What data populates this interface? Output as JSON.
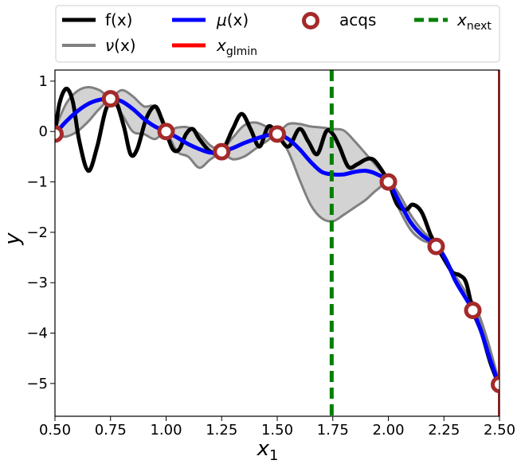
{
  "chart_data": {
    "type": "line",
    "xlabel_main": "x",
    "xlabel_sub": "1",
    "ylabel": "y",
    "xlim": [
      0.5,
      2.5
    ],
    "ylim": [
      -5.65,
      1.22
    ],
    "grid": false,
    "legend_placement": "top",
    "xticks": [
      0.5,
      0.75,
      1.0,
      1.25,
      1.5,
      1.75,
      2.0,
      2.25,
      2.5
    ],
    "xtick_labels": [
      "0.50",
      "0.75",
      "1.00",
      "1.25",
      "1.50",
      "1.75",
      "2.00",
      "2.25",
      "2.50"
    ],
    "yticks": [
      1,
      0,
      -1,
      -2,
      -3,
      -4,
      -5
    ],
    "ytick_labels": [
      "1",
      "0",
      "−1",
      "−2",
      "−3",
      "−4",
      "−5"
    ],
    "legend": {
      "f": "f(x)",
      "nu_sym": "ν",
      "nu_arg": "(x)",
      "mu_sym": "μ",
      "mu_arg": "(x)",
      "glmin_main": "x",
      "glmin_sub": "glmin",
      "acqs": "acqs",
      "next_main": "x",
      "next_sub": "next"
    },
    "colors": {
      "f": "#000000",
      "nu": "#808080",
      "band": "#d3d3d3",
      "mu": "#0000ff",
      "glmin": "#ff0000",
      "glmin_line": "#a52a2a",
      "acqs": "#a52a2a",
      "next": "#008000"
    },
    "f_points": [
      [
        0.5,
        -0.05
      ],
      [
        0.52,
        0.55
      ],
      [
        0.55,
        0.85
      ],
      [
        0.58,
        0.6
      ],
      [
        0.61,
        -0.2
      ],
      [
        0.65,
        -0.78
      ],
      [
        0.69,
        -0.3
      ],
      [
        0.73,
        0.45
      ],
      [
        0.77,
        0.62
      ],
      [
        0.81,
        0.1
      ],
      [
        0.84,
        -0.45
      ],
      [
        0.87,
        -0.35
      ],
      [
        0.91,
        0.25
      ],
      [
        0.95,
        0.5
      ],
      [
        0.98,
        0.25
      ],
      [
        1.0,
        0.0
      ],
      [
        1.03,
        -0.35
      ],
      [
        1.06,
        -0.35
      ],
      [
        1.09,
        -0.05
      ],
      [
        1.12,
        0.05
      ],
      [
        1.15,
        -0.15
      ],
      [
        1.2,
        -0.4
      ],
      [
        1.25,
        -0.4
      ],
      [
        1.3,
        0.05
      ],
      [
        1.34,
        0.35
      ],
      [
        1.38,
        0.05
      ],
      [
        1.42,
        -0.3
      ],
      [
        1.46,
        0.1
      ],
      [
        1.5,
        -0.05
      ],
      [
        1.55,
        -0.3
      ],
      [
        1.6,
        0.05
      ],
      [
        1.64,
        -0.2
      ],
      [
        1.68,
        -0.45
      ],
      [
        1.72,
        0.0
      ],
      [
        1.75,
        -0.05
      ],
      [
        1.78,
        -0.3
      ],
      [
        1.82,
        -0.7
      ],
      [
        1.86,
        -0.65
      ],
      [
        1.9,
        -0.55
      ],
      [
        1.93,
        -0.55
      ],
      [
        1.96,
        -0.7
      ],
      [
        2.0,
        -1.0
      ],
      [
        2.04,
        -1.45
      ],
      [
        2.08,
        -1.55
      ],
      [
        2.11,
        -1.45
      ],
      [
        2.15,
        -1.6
      ],
      [
        2.19,
        -2.05
      ],
      [
        2.22,
        -2.3
      ],
      [
        2.26,
        -2.6
      ],
      [
        2.29,
        -2.8
      ],
      [
        2.32,
        -2.85
      ],
      [
        2.35,
        -3.0
      ],
      [
        2.38,
        -3.55
      ],
      [
        2.42,
        -4.0
      ],
      [
        2.46,
        -4.6
      ],
      [
        2.5,
        -5.05
      ]
    ],
    "mu_points": [
      [
        0.5,
        -0.05
      ],
      [
        0.55,
        0.2
      ],
      [
        0.6,
        0.4
      ],
      [
        0.65,
        0.55
      ],
      [
        0.7,
        0.63
      ],
      [
        0.75,
        0.65
      ],
      [
        0.8,
        0.6
      ],
      [
        0.85,
        0.45
      ],
      [
        0.9,
        0.25
      ],
      [
        0.95,
        0.1
      ],
      [
        1.0,
        0.0
      ],
      [
        1.05,
        -0.12
      ],
      [
        1.1,
        -0.25
      ],
      [
        1.15,
        -0.35
      ],
      [
        1.2,
        -0.42
      ],
      [
        1.25,
        -0.4
      ],
      [
        1.3,
        -0.33
      ],
      [
        1.35,
        -0.23
      ],
      [
        1.4,
        -0.15
      ],
      [
        1.45,
        -0.08
      ],
      [
        1.5,
        -0.05
      ],
      [
        1.55,
        -0.15
      ],
      [
        1.6,
        -0.35
      ],
      [
        1.65,
        -0.6
      ],
      [
        1.7,
        -0.8
      ],
      [
        1.75,
        -0.85
      ],
      [
        1.8,
        -0.85
      ],
      [
        1.85,
        -0.8
      ],
      [
        1.9,
        -0.78
      ],
      [
        1.95,
        -0.85
      ],
      [
        2.0,
        -1.0
      ],
      [
        2.05,
        -1.4
      ],
      [
        2.1,
        -1.8
      ],
      [
        2.15,
        -2.05
      ],
      [
        2.2,
        -2.2
      ],
      [
        2.22,
        -2.27
      ],
      [
        2.26,
        -2.55
      ],
      [
        2.3,
        -2.95
      ],
      [
        2.34,
        -3.25
      ],
      [
        2.38,
        -3.55
      ],
      [
        2.42,
        -4.0
      ],
      [
        2.46,
        -4.55
      ],
      [
        2.5,
        -5.05
      ]
    ],
    "nu_upper": [
      [
        0.5,
        0.05
      ],
      [
        0.55,
        0.55
      ],
      [
        0.6,
        0.8
      ],
      [
        0.65,
        0.88
      ],
      [
        0.7,
        0.82
      ],
      [
        0.75,
        0.68
      ],
      [
        0.8,
        0.82
      ],
      [
        0.85,
        0.7
      ],
      [
        0.9,
        0.5
      ],
      [
        0.95,
        0.48
      ],
      [
        1.0,
        0.03
      ],
      [
        1.05,
        0.08
      ],
      [
        1.1,
        0.08
      ],
      [
        1.15,
        -0.05
      ],
      [
        1.2,
        -0.28
      ],
      [
        1.25,
        -0.36
      ],
      [
        1.3,
        -0.12
      ],
      [
        1.35,
        0.12
      ],
      [
        1.4,
        0.18
      ],
      [
        1.45,
        0.1
      ],
      [
        1.5,
        -0.02
      ],
      [
        1.55,
        0.15
      ],
      [
        1.6,
        0.15
      ],
      [
        1.65,
        0.1
      ],
      [
        1.7,
        0.08
      ],
      [
        1.75,
        0.05
      ],
      [
        1.8,
        0.02
      ],
      [
        1.85,
        -0.2
      ],
      [
        1.9,
        -0.45
      ],
      [
        1.95,
        -0.7
      ],
      [
        2.0,
        -0.95
      ],
      [
        2.05,
        -1.25
      ],
      [
        2.1,
        -1.65
      ],
      [
        2.15,
        -1.95
      ],
      [
        2.2,
        -2.18
      ],
      [
        2.25,
        -2.45
      ],
      [
        2.3,
        -2.85
      ],
      [
        2.35,
        -3.2
      ],
      [
        2.4,
        -3.55
      ],
      [
        2.45,
        -4.2
      ],
      [
        2.5,
        -5.0
      ]
    ],
    "nu_lower": [
      [
        0.5,
        -0.08
      ],
      [
        0.55,
        -0.1
      ],
      [
        0.6,
        0.0
      ],
      [
        0.65,
        0.2
      ],
      [
        0.7,
        0.45
      ],
      [
        0.75,
        0.62
      ],
      [
        0.8,
        0.35
      ],
      [
        0.85,
        0.0
      ],
      [
        0.9,
        -0.05
      ],
      [
        0.95,
        -0.15
      ],
      [
        1.0,
        -0.03
      ],
      [
        1.05,
        -0.4
      ],
      [
        1.1,
        -0.5
      ],
      [
        1.15,
        -0.72
      ],
      [
        1.2,
        -0.55
      ],
      [
        1.25,
        -0.44
      ],
      [
        1.3,
        -0.55
      ],
      [
        1.35,
        -0.5
      ],
      [
        1.4,
        -0.35
      ],
      [
        1.45,
        -0.2
      ],
      [
        1.5,
        -0.08
      ],
      [
        1.55,
        -0.4
      ],
      [
        1.6,
        -0.95
      ],
      [
        1.65,
        -1.45
      ],
      [
        1.7,
        -1.72
      ],
      [
        1.75,
        -1.78
      ],
      [
        1.8,
        -1.65
      ],
      [
        1.85,
        -1.5
      ],
      [
        1.9,
        -1.35
      ],
      [
        1.95,
        -1.15
      ],
      [
        2.0,
        -1.05
      ],
      [
        2.05,
        -1.55
      ],
      [
        2.1,
        -1.95
      ],
      [
        2.15,
        -2.15
      ],
      [
        2.2,
        -2.25
      ],
      [
        2.25,
        -2.55
      ],
      [
        2.3,
        -2.95
      ],
      [
        2.35,
        -3.3
      ],
      [
        2.4,
        -3.6
      ],
      [
        2.45,
        -4.25
      ],
      [
        2.5,
        -5.05
      ]
    ],
    "acqs_points": [
      [
        0.5,
        -0.05
      ],
      [
        0.75,
        0.65
      ],
      [
        1.0,
        0.0
      ],
      [
        1.25,
        -0.4
      ],
      [
        1.5,
        -0.05
      ],
      [
        2.0,
        -1.0
      ],
      [
        2.215,
        -2.28
      ],
      [
        2.38,
        -3.55
      ],
      [
        2.5,
        -5.02
      ]
    ],
    "x_next": 1.745,
    "x_glmin": 2.5
  }
}
